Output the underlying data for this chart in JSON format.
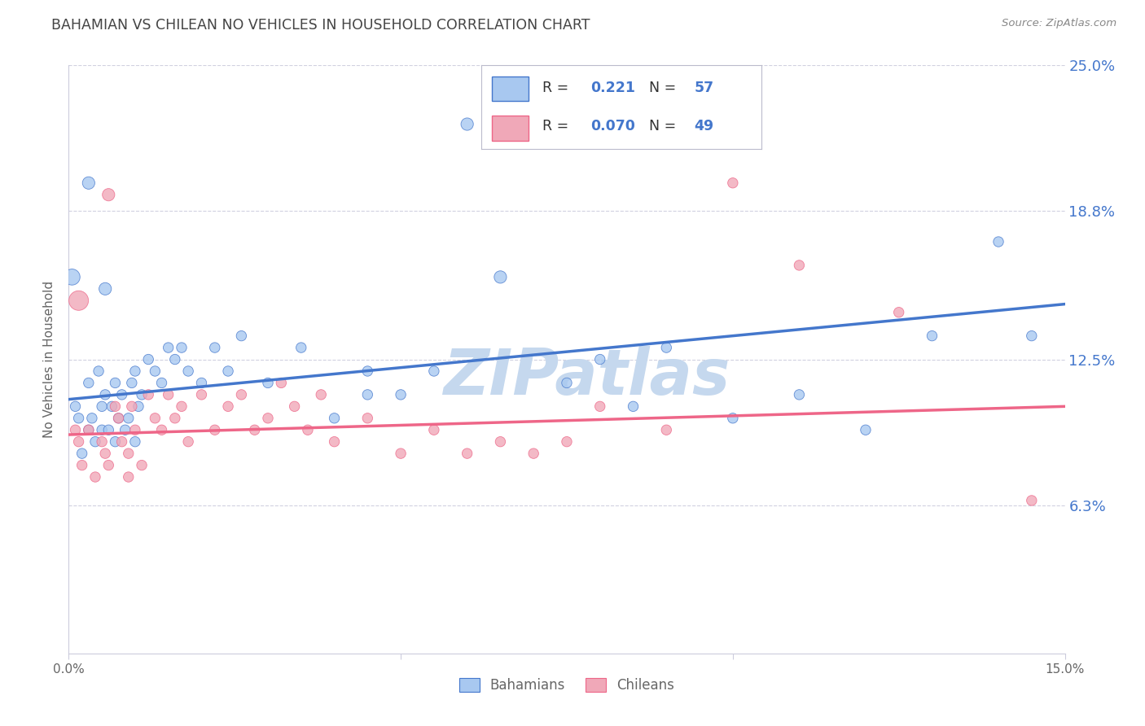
{
  "title": "BAHAMIAN VS CHILEAN NO VEHICLES IN HOUSEHOLD CORRELATION CHART",
  "source": "Source: ZipAtlas.com",
  "ylabel_label": "No Vehicles in Household",
  "xlim": [
    0.0,
    15.0
  ],
  "ylim": [
    0.0,
    25.0
  ],
  "ytick_positions": [
    6.3,
    12.5,
    18.8,
    25.0
  ],
  "xtick_positions": [
    0.0,
    5.0,
    10.0,
    15.0
  ],
  "xtick_labels": [
    "0.0%",
    "",
    "",
    "15.0%"
  ],
  "legend_R_bah": "0.221",
  "legend_N_bah": "57",
  "legend_R_chi": "0.070",
  "legend_N_chi": "49",
  "color_bah": "#A8C8F0",
  "color_chi": "#F0A8B8",
  "color_bah_line": "#4477CC",
  "color_chi_line": "#EE6688",
  "watermark_color": "#C5D8EE",
  "background_color": "#FFFFFF",
  "grid_color": "#CCCCDD",
  "title_color": "#444444",
  "axis_label_color": "#666666",
  "tick_color_y": "#4477CC",
  "source_color": "#888888",
  "bahamian_x": [
    0.05,
    0.1,
    0.15,
    0.2,
    0.3,
    0.3,
    0.35,
    0.4,
    0.45,
    0.5,
    0.5,
    0.55,
    0.6,
    0.65,
    0.7,
    0.7,
    0.75,
    0.8,
    0.85,
    0.9,
    0.95,
    1.0,
    1.0,
    1.05,
    1.1,
    1.2,
    1.3,
    1.4,
    1.5,
    1.6,
    1.7,
    1.8,
    2.0,
    2.2,
    2.4,
    2.6,
    3.0,
    3.5,
    4.0,
    4.5,
    5.0,
    5.5,
    6.0,
    6.5,
    7.5,
    8.0,
    8.5,
    9.0,
    10.0,
    11.0,
    12.0,
    13.0,
    14.0,
    14.5,
    0.3,
    4.5,
    0.55
  ],
  "bahamian_y": [
    16.0,
    10.5,
    10.0,
    8.5,
    11.5,
    9.5,
    10.0,
    9.0,
    12.0,
    9.5,
    10.5,
    11.0,
    9.5,
    10.5,
    11.5,
    9.0,
    10.0,
    11.0,
    9.5,
    10.0,
    11.5,
    9.0,
    12.0,
    10.5,
    11.0,
    12.5,
    12.0,
    11.5,
    13.0,
    12.5,
    13.0,
    12.0,
    11.5,
    13.0,
    12.0,
    13.5,
    11.5,
    13.0,
    10.0,
    12.0,
    11.0,
    12.0,
    22.5,
    16.0,
    11.5,
    12.5,
    10.5,
    13.0,
    10.0,
    11.0,
    9.5,
    13.5,
    17.5,
    13.5,
    20.0,
    11.0,
    15.5
  ],
  "bahamian_sizes": [
    200,
    80,
    80,
    80,
    80,
    80,
    80,
    80,
    80,
    80,
    80,
    80,
    80,
    80,
    80,
    80,
    80,
    80,
    80,
    80,
    80,
    80,
    80,
    80,
    80,
    80,
    80,
    80,
    80,
    80,
    80,
    80,
    80,
    80,
    80,
    80,
    80,
    80,
    80,
    80,
    80,
    80,
    120,
    120,
    80,
    80,
    80,
    80,
    80,
    80,
    80,
    80,
    80,
    80,
    120,
    80,
    120
  ],
  "chilean_x": [
    0.1,
    0.15,
    0.2,
    0.3,
    0.4,
    0.5,
    0.55,
    0.6,
    0.7,
    0.75,
    0.8,
    0.9,
    0.95,
    1.0,
    1.1,
    1.2,
    1.3,
    1.4,
    1.5,
    1.6,
    1.7,
    1.8,
    2.0,
    2.2,
    2.4,
    2.6,
    2.8,
    3.0,
    3.2,
    3.4,
    3.6,
    3.8,
    4.0,
    4.5,
    5.0,
    5.5,
    6.0,
    6.5,
    7.0,
    7.5,
    8.0,
    9.0,
    10.0,
    11.0,
    12.5,
    14.5,
    0.15,
    0.6,
    0.9
  ],
  "chilean_y": [
    9.5,
    9.0,
    8.0,
    9.5,
    7.5,
    9.0,
    8.5,
    8.0,
    10.5,
    10.0,
    9.0,
    8.5,
    10.5,
    9.5,
    8.0,
    11.0,
    10.0,
    9.5,
    11.0,
    10.0,
    10.5,
    9.0,
    11.0,
    9.5,
    10.5,
    11.0,
    9.5,
    10.0,
    11.5,
    10.5,
    9.5,
    11.0,
    9.0,
    10.0,
    8.5,
    9.5,
    8.5,
    9.0,
    8.5,
    9.0,
    10.5,
    9.5,
    20.0,
    16.5,
    14.5,
    6.5,
    15.0,
    19.5,
    7.5
  ],
  "chilean_sizes": [
    80,
    80,
    80,
    80,
    80,
    80,
    80,
    80,
    80,
    80,
    80,
    80,
    80,
    80,
    80,
    80,
    80,
    80,
    80,
    80,
    80,
    80,
    80,
    80,
    80,
    80,
    80,
    80,
    80,
    80,
    80,
    80,
    80,
    80,
    80,
    80,
    80,
    80,
    80,
    80,
    80,
    80,
    80,
    80,
    80,
    80,
    300,
    120,
    80
  ],
  "bah_line_intercept": 10.8,
  "bah_line_slope": 0.27,
  "chi_line_intercept": 9.3,
  "chi_line_slope": 0.08
}
